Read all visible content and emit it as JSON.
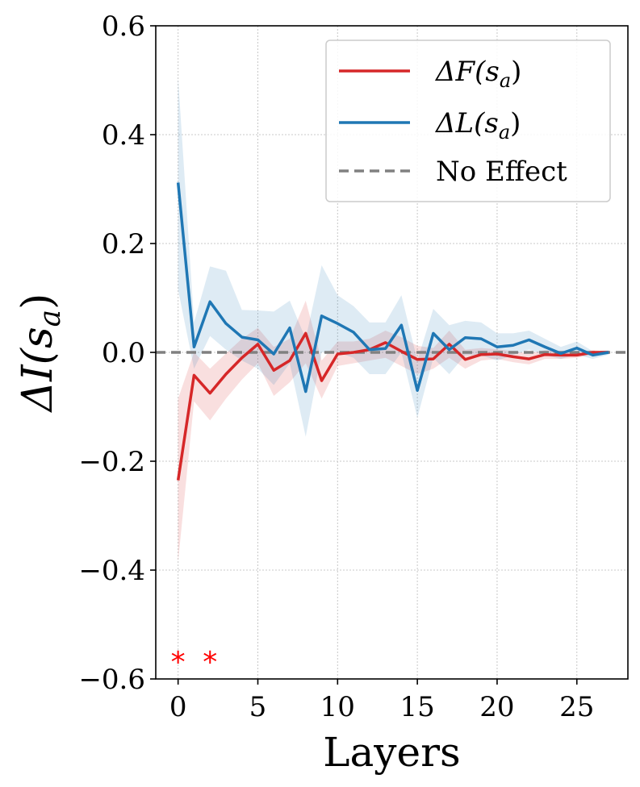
{
  "chart_data": {
    "type": "line",
    "title": "",
    "xlabel": "Layers",
    "ylabel": "ΔI(s",
    "ylabel_sub": "a",
    "ylabel_close": ")",
    "xlim": [
      -1.4,
      28.2
    ],
    "ylim": [
      -0.6,
      0.6
    ],
    "grid": true,
    "xticks": [
      0,
      5,
      10,
      15,
      20,
      25
    ],
    "xtick_labels": [
      "0",
      "5",
      "10",
      "15",
      "20",
      "25"
    ],
    "yticks": [
      -0.6,
      -0.4,
      -0.2,
      0.0,
      0.2,
      0.4,
      0.6
    ],
    "ytick_labels": [
      "−0.6",
      "−0.4",
      "−0.2",
      "0.0",
      "0.2",
      "0.4",
      "0.6"
    ],
    "x": [
      0,
      1,
      2,
      3,
      4,
      5,
      6,
      7,
      8,
      9,
      10,
      11,
      12,
      13,
      14,
      15,
      16,
      17,
      18,
      19,
      20,
      21,
      22,
      23,
      24,
      25,
      26,
      27
    ],
    "series": [
      {
        "name": "ΔF(s",
        "sub": "a",
        "close": ")",
        "color": "#d62728",
        "values": [
          -0.235,
          -0.042,
          -0.075,
          -0.04,
          -0.01,
          0.015,
          -0.033,
          -0.015,
          0.035,
          -0.052,
          -0.003,
          0.0,
          0.005,
          0.018,
          0.002,
          -0.013,
          -0.012,
          0.015,
          -0.013,
          -0.004,
          -0.003,
          -0.008,
          -0.012,
          -0.004,
          -0.005,
          -0.005,
          0.0,
          0.0
        ],
        "lower": [
          -0.385,
          -0.09,
          -0.125,
          -0.085,
          -0.05,
          -0.02,
          -0.08,
          -0.055,
          -0.02,
          -0.085,
          -0.025,
          -0.02,
          -0.015,
          -0.01,
          -0.025,
          -0.04,
          -0.03,
          -0.01,
          -0.03,
          -0.015,
          -0.012,
          -0.018,
          -0.022,
          -0.012,
          -0.012,
          -0.01,
          -0.004,
          -0.002
        ],
        "upper": [
          -0.085,
          0.0,
          -0.03,
          -0.002,
          0.025,
          0.045,
          0.01,
          0.025,
          0.095,
          -0.015,
          0.02,
          0.02,
          0.025,
          0.04,
          0.028,
          0.012,
          0.008,
          0.04,
          0.005,
          0.008,
          0.006,
          0.002,
          -0.002,
          0.004,
          0.002,
          0.0,
          0.004,
          0.002
        ]
      },
      {
        "name": "ΔL(s",
        "sub": "a",
        "close": ")",
        "color": "#1f77b4",
        "values": [
          0.312,
          0.01,
          0.093,
          0.053,
          0.028,
          0.023,
          -0.003,
          0.045,
          -0.072,
          0.067,
          0.053,
          0.037,
          0.005,
          0.007,
          0.05,
          -0.07,
          0.035,
          0.005,
          0.027,
          0.025,
          0.01,
          0.013,
          0.023,
          0.01,
          -0.002,
          0.008,
          -0.005,
          0.0
        ],
        "lower": [
          0.115,
          -0.03,
          0.03,
          0.005,
          -0.015,
          -0.03,
          -0.06,
          -0.02,
          -0.155,
          0.0,
          0.0,
          -0.01,
          -0.04,
          -0.04,
          0.0,
          -0.12,
          -0.01,
          -0.04,
          -0.005,
          -0.005,
          -0.015,
          -0.005,
          0.005,
          -0.005,
          -0.012,
          -0.004,
          -0.012,
          -0.004
        ],
        "upper": [
          0.505,
          0.055,
          0.158,
          0.15,
          0.078,
          0.077,
          0.075,
          0.095,
          0.025,
          0.16,
          0.105,
          0.085,
          0.055,
          0.055,
          0.105,
          -0.015,
          0.08,
          0.05,
          0.058,
          0.055,
          0.035,
          0.035,
          0.04,
          0.025,
          0.01,
          0.02,
          0.002,
          0.004
        ]
      }
    ],
    "reference_line": {
      "name": "No Effect",
      "y": 0.0,
      "color": "#808080"
    },
    "significance_markers": {
      "x": [
        0,
        2
      ],
      "symbol": "*",
      "color": "#ff0000",
      "y": -0.56
    },
    "legend_position": "top-right"
  }
}
